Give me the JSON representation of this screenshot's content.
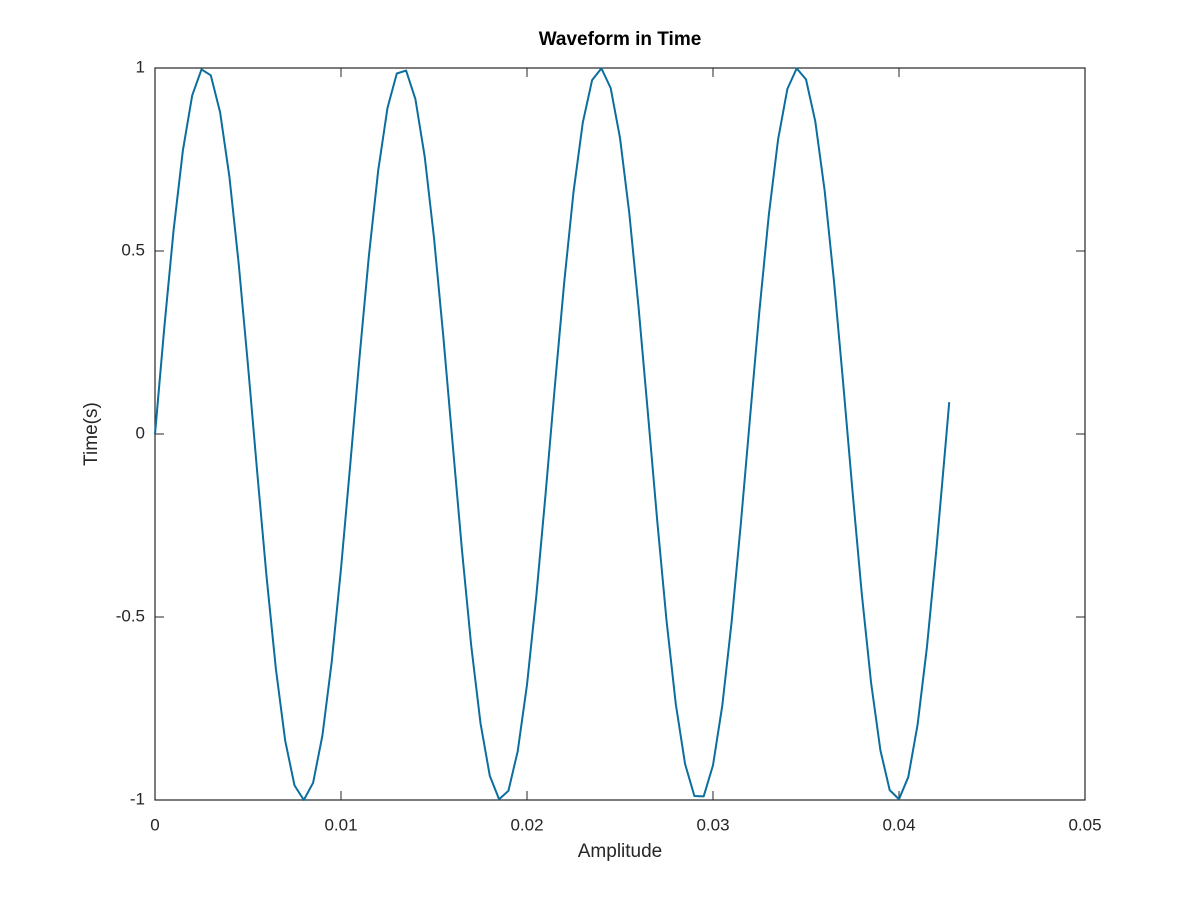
{
  "chart_data": {
    "type": "line",
    "title": "Waveform in Time",
    "x_label": "Amplitude",
    "y_label": "Time(s)",
    "x": [
      0,
      0.0005,
      0.001,
      0.0015,
      0.002,
      0.0025,
      0.003,
      0.0035,
      0.004,
      0.0045,
      0.005,
      0.0055,
      0.006,
      0.0065,
      0.007,
      0.0075,
      0.008,
      0.0085,
      0.009,
      0.0095,
      0.01,
      0.0105,
      0.011,
      0.0115,
      0.012,
      0.0125,
      0.013,
      0.0135,
      0.014,
      0.0145,
      0.015,
      0.0155,
      0.016,
      0.0165,
      0.017,
      0.0175,
      0.018,
      0.0185,
      0.019,
      0.0195,
      0.02,
      0.0205,
      0.021,
      0.0215,
      0.022,
      0.0225,
      0.023,
      0.0235,
      0.024,
      0.0245,
      0.025,
      0.0255,
      0.026,
      0.0265,
      0.027,
      0.0275,
      0.028,
      0.0285,
      0.029,
      0.0295,
      0.03,
      0.0305,
      0.031,
      0.0315,
      0.032,
      0.0325,
      0.033,
      0.0335,
      0.034,
      0.0345,
      0.035,
      0.0355,
      0.036,
      0.0365,
      0.037,
      0.0375,
      0.038,
      0.0385,
      0.039,
      0.0395,
      0.04,
      0.0405,
      0.041,
      0.0415,
      0.042,
      0.0425,
      0.0427
    ],
    "series": [
      {
        "color": "#0b6e9e",
        "values": [
          0,
          0.291,
          0.557,
          0.775,
          0.925,
          0.996,
          0.98,
          0.879,
          0.703,
          0.465,
          0.187,
          -0.107,
          -0.391,
          -0.642,
          -0.838,
          -0.96,
          -1,
          -0.953,
          -0.824,
          -0.623,
          -0.368,
          -0.082,
          0.212,
          0.487,
          0.72,
          0.891,
          0.985,
          0.993,
          0.915,
          0.758,
          0.536,
          0.267,
          -0.025,
          -0.315,
          -0.578,
          -0.79,
          -0.934,
          -0.998,
          -0.975,
          -0.867,
          -0.685,
          -0.443,
          -0.163,
          0.132,
          0.414,
          0.661,
          0.851,
          0.967,
          0.999,
          0.945,
          0.809,
          0.603,
          0.345,
          0.057,
          -0.236,
          -0.509,
          -0.738,
          -0.902,
          -0.989,
          -0.99,
          -0.905,
          -0.742,
          -0.514,
          -0.243,
          0.05,
          0.339,
          0.598,
          0.805,
          0.943,
          0.999,
          0.969,
          0.854,
          0.666,
          0.42,
          0.138,
          -0.156,
          -0.437,
          -0.68,
          -0.864,
          -0.973,
          -0.998,
          -0.937,
          -0.794,
          -0.583,
          -0.321,
          -0.031,
          0.087
        ]
      }
    ],
    "xlim": [
      0,
      0.05
    ],
    "xticks": [
      0,
      0.01,
      0.02,
      0.03,
      0.04,
      0.05
    ],
    "ylim": [
      -1,
      1
    ],
    "yticks": [
      -1,
      -0.5,
      0,
      0.5,
      1
    ]
  }
}
